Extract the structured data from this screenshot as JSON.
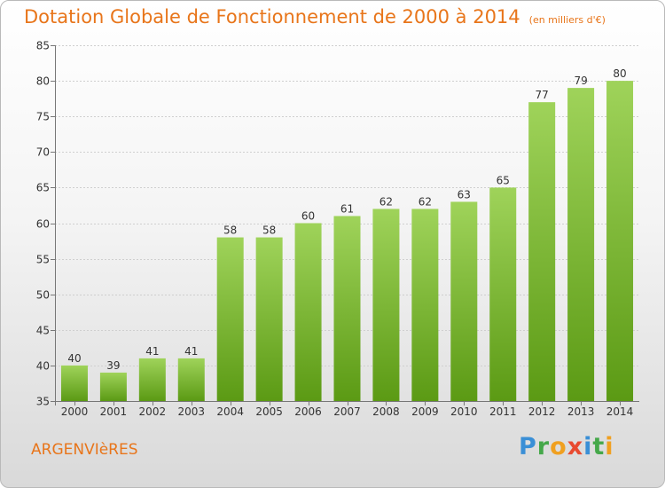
{
  "title": "Dotation Globale de Fonctionnement de 2000 à 2014",
  "subtitle": "(en milliers d'€)",
  "town": "ARGENVIèRES",
  "logo": "Proxiti",
  "colors": {
    "accent": "#e8751a",
    "bar_top": "#9fd35a",
    "bar_bottom": "#5b9a14"
  },
  "chart_data": {
    "type": "bar",
    "categories": [
      "2000",
      "2001",
      "2002",
      "2003",
      "2004",
      "2005",
      "2006",
      "2007",
      "2008",
      "2009",
      "2010",
      "2011",
      "2012",
      "2013",
      "2014"
    ],
    "values": [
      40,
      39,
      41,
      41,
      58,
      58,
      60,
      61,
      62,
      62,
      63,
      65,
      77,
      79,
      80
    ],
    "ylim": [
      35,
      85
    ],
    "yticks": [
      35,
      40,
      45,
      50,
      55,
      60,
      65,
      70,
      75,
      80,
      85
    ],
    "grid": true,
    "data_labels": true
  }
}
